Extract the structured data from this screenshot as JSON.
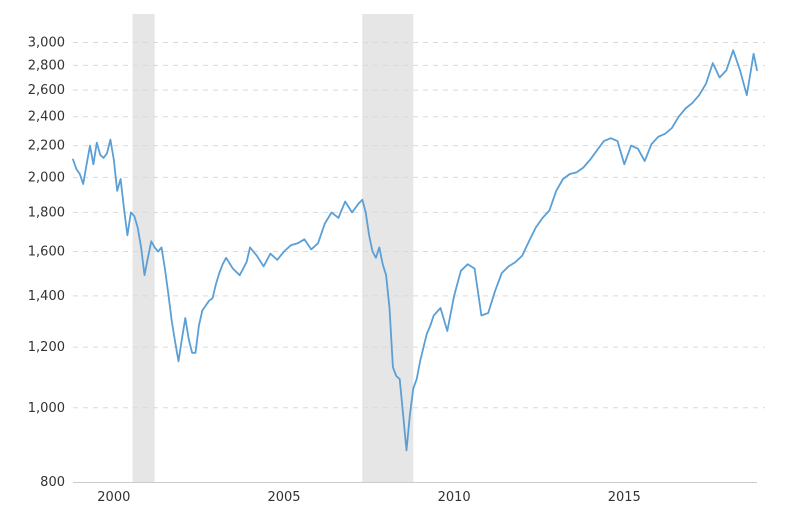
{
  "chart_data": {
    "type": "line",
    "title": "",
    "xlabel": "",
    "ylabel": "",
    "y_scale": "log",
    "ylim": [
      800,
      3050
    ],
    "xlim": [
      1998.8,
      2018.9
    ],
    "yticks": [
      {
        "value": 800,
        "label": "800"
      },
      {
        "value": 1000,
        "label": "1,000"
      },
      {
        "value": 1200,
        "label": "1,200"
      },
      {
        "value": 1400,
        "label": "1,400"
      },
      {
        "value": 1600,
        "label": "1,600"
      },
      {
        "value": 1800,
        "label": "1,800"
      },
      {
        "value": 2000,
        "label": "2,000"
      },
      {
        "value": 2200,
        "label": "2,200"
      },
      {
        "value": 2400,
        "label": "2,400"
      },
      {
        "value": 2600,
        "label": "2,600"
      },
      {
        "value": 2800,
        "label": "2,800"
      },
      {
        "value": 3000,
        "label": "3,000"
      }
    ],
    "xticks": [
      {
        "value": 2000,
        "label": "2000"
      },
      {
        "value": 2005,
        "label": "2005"
      },
      {
        "value": 2010,
        "label": "2010"
      },
      {
        "value": 2015,
        "label": "2015"
      }
    ],
    "grid": true,
    "line_color": "#5a9fd6",
    "shade_color": "#e6e6e6",
    "recessions": [
      [
        2000.55,
        2001.2
      ],
      [
        2007.3,
        2008.8
      ]
    ],
    "series": [
      {
        "x": [
          1998.8,
          1998.9,
          1999.0,
          1999.1,
          1999.2,
          1999.3,
          1999.4,
          1999.5,
          1999.6,
          1999.7,
          1999.8,
          1999.9,
          2000.0,
          2000.1,
          2000.2,
          2000.3,
          2000.4,
          2000.5,
          2000.6,
          2000.7,
          2000.8,
          2000.9,
          2001.0,
          2001.1,
          2001.2,
          2001.3,
          2001.4,
          2001.5,
          2001.6,
          2001.7,
          2001.8,
          2001.9,
          2002.0,
          2002.1,
          2002.2,
          2002.3,
          2002.4,
          2002.5,
          2002.6,
          2002.7,
          2002.8,
          2002.9,
          2003.0,
          2003.1,
          2003.2,
          2003.3,
          2003.5,
          2003.7,
          2003.9,
          2004.0,
          2004.2,
          2004.4,
          2004.6,
          2004.8,
          2005.0,
          2005.2,
          2005.4,
          2005.6,
          2005.8,
          2006.0,
          2006.2,
          2006.4,
          2006.6,
          2006.8,
          2007.0,
          2007.2,
          2007.3,
          2007.4,
          2007.5,
          2007.6,
          2007.7,
          2007.8,
          2007.9,
          2008.0,
          2008.1,
          2008.2,
          2008.3,
          2008.4,
          2008.5,
          2008.6,
          2008.7,
          2008.8,
          2008.9,
          2009.0,
          2009.1,
          2009.2,
          2009.3,
          2009.4,
          2009.6,
          2009.8,
          2010.0,
          2010.2,
          2010.4,
          2010.6,
          2010.8,
          2011.0,
          2011.2,
          2011.4,
          2011.6,
          2011.8,
          2012.0,
          2012.2,
          2012.4,
          2012.6,
          2012.8,
          2013.0,
          2013.2,
          2013.4,
          2013.6,
          2013.8,
          2014.0,
          2014.2,
          2014.4,
          2014.6,
          2014.8,
          2015.0,
          2015.2,
          2015.4,
          2015.6,
          2015.8,
          2016.0,
          2016.2,
          2016.4,
          2016.6,
          2016.8,
          2017.0,
          2017.2,
          2017.4,
          2017.6,
          2017.8,
          2018.0,
          2018.2,
          2018.4,
          2018.6,
          2018.8,
          2018.9
        ],
        "y": [
          2110,
          2050,
          2020,
          1960,
          2080,
          2200,
          2080,
          2220,
          2140,
          2120,
          2150,
          2240,
          2110,
          1920,
          1990,
          1820,
          1680,
          1800,
          1780,
          1720,
          1620,
          1490,
          1570,
          1650,
          1620,
          1600,
          1620,
          1520,
          1410,
          1300,
          1220,
          1150,
          1230,
          1310,
          1230,
          1180,
          1180,
          1280,
          1340,
          1360,
          1380,
          1390,
          1450,
          1500,
          1540,
          1570,
          1520,
          1490,
          1550,
          1620,
          1580,
          1530,
          1590,
          1560,
          1600,
          1630,
          1640,
          1660,
          1610,
          1640,
          1740,
          1800,
          1770,
          1860,
          1800,
          1850,
          1870,
          1800,
          1680,
          1600,
          1570,
          1620,
          1540,
          1490,
          1350,
          1130,
          1100,
          1090,
          980,
          880,
          980,
          1060,
          1090,
          1150,
          1200,
          1250,
          1280,
          1320,
          1350,
          1260,
          1400,
          1510,
          1540,
          1520,
          1320,
          1330,
          1420,
          1500,
          1530,
          1550,
          1580,
          1650,
          1720,
          1770,
          1810,
          1920,
          1990,
          2020,
          2030,
          2060,
          2110,
          2170,
          2230,
          2250,
          2230,
          2080,
          2200,
          2180,
          2100,
          2210,
          2260,
          2280,
          2320,
          2400,
          2460,
          2500,
          2560,
          2650,
          2820,
          2700,
          2760,
          2930,
          2760,
          2560,
          2900,
          2760
        ]
      }
    ]
  }
}
